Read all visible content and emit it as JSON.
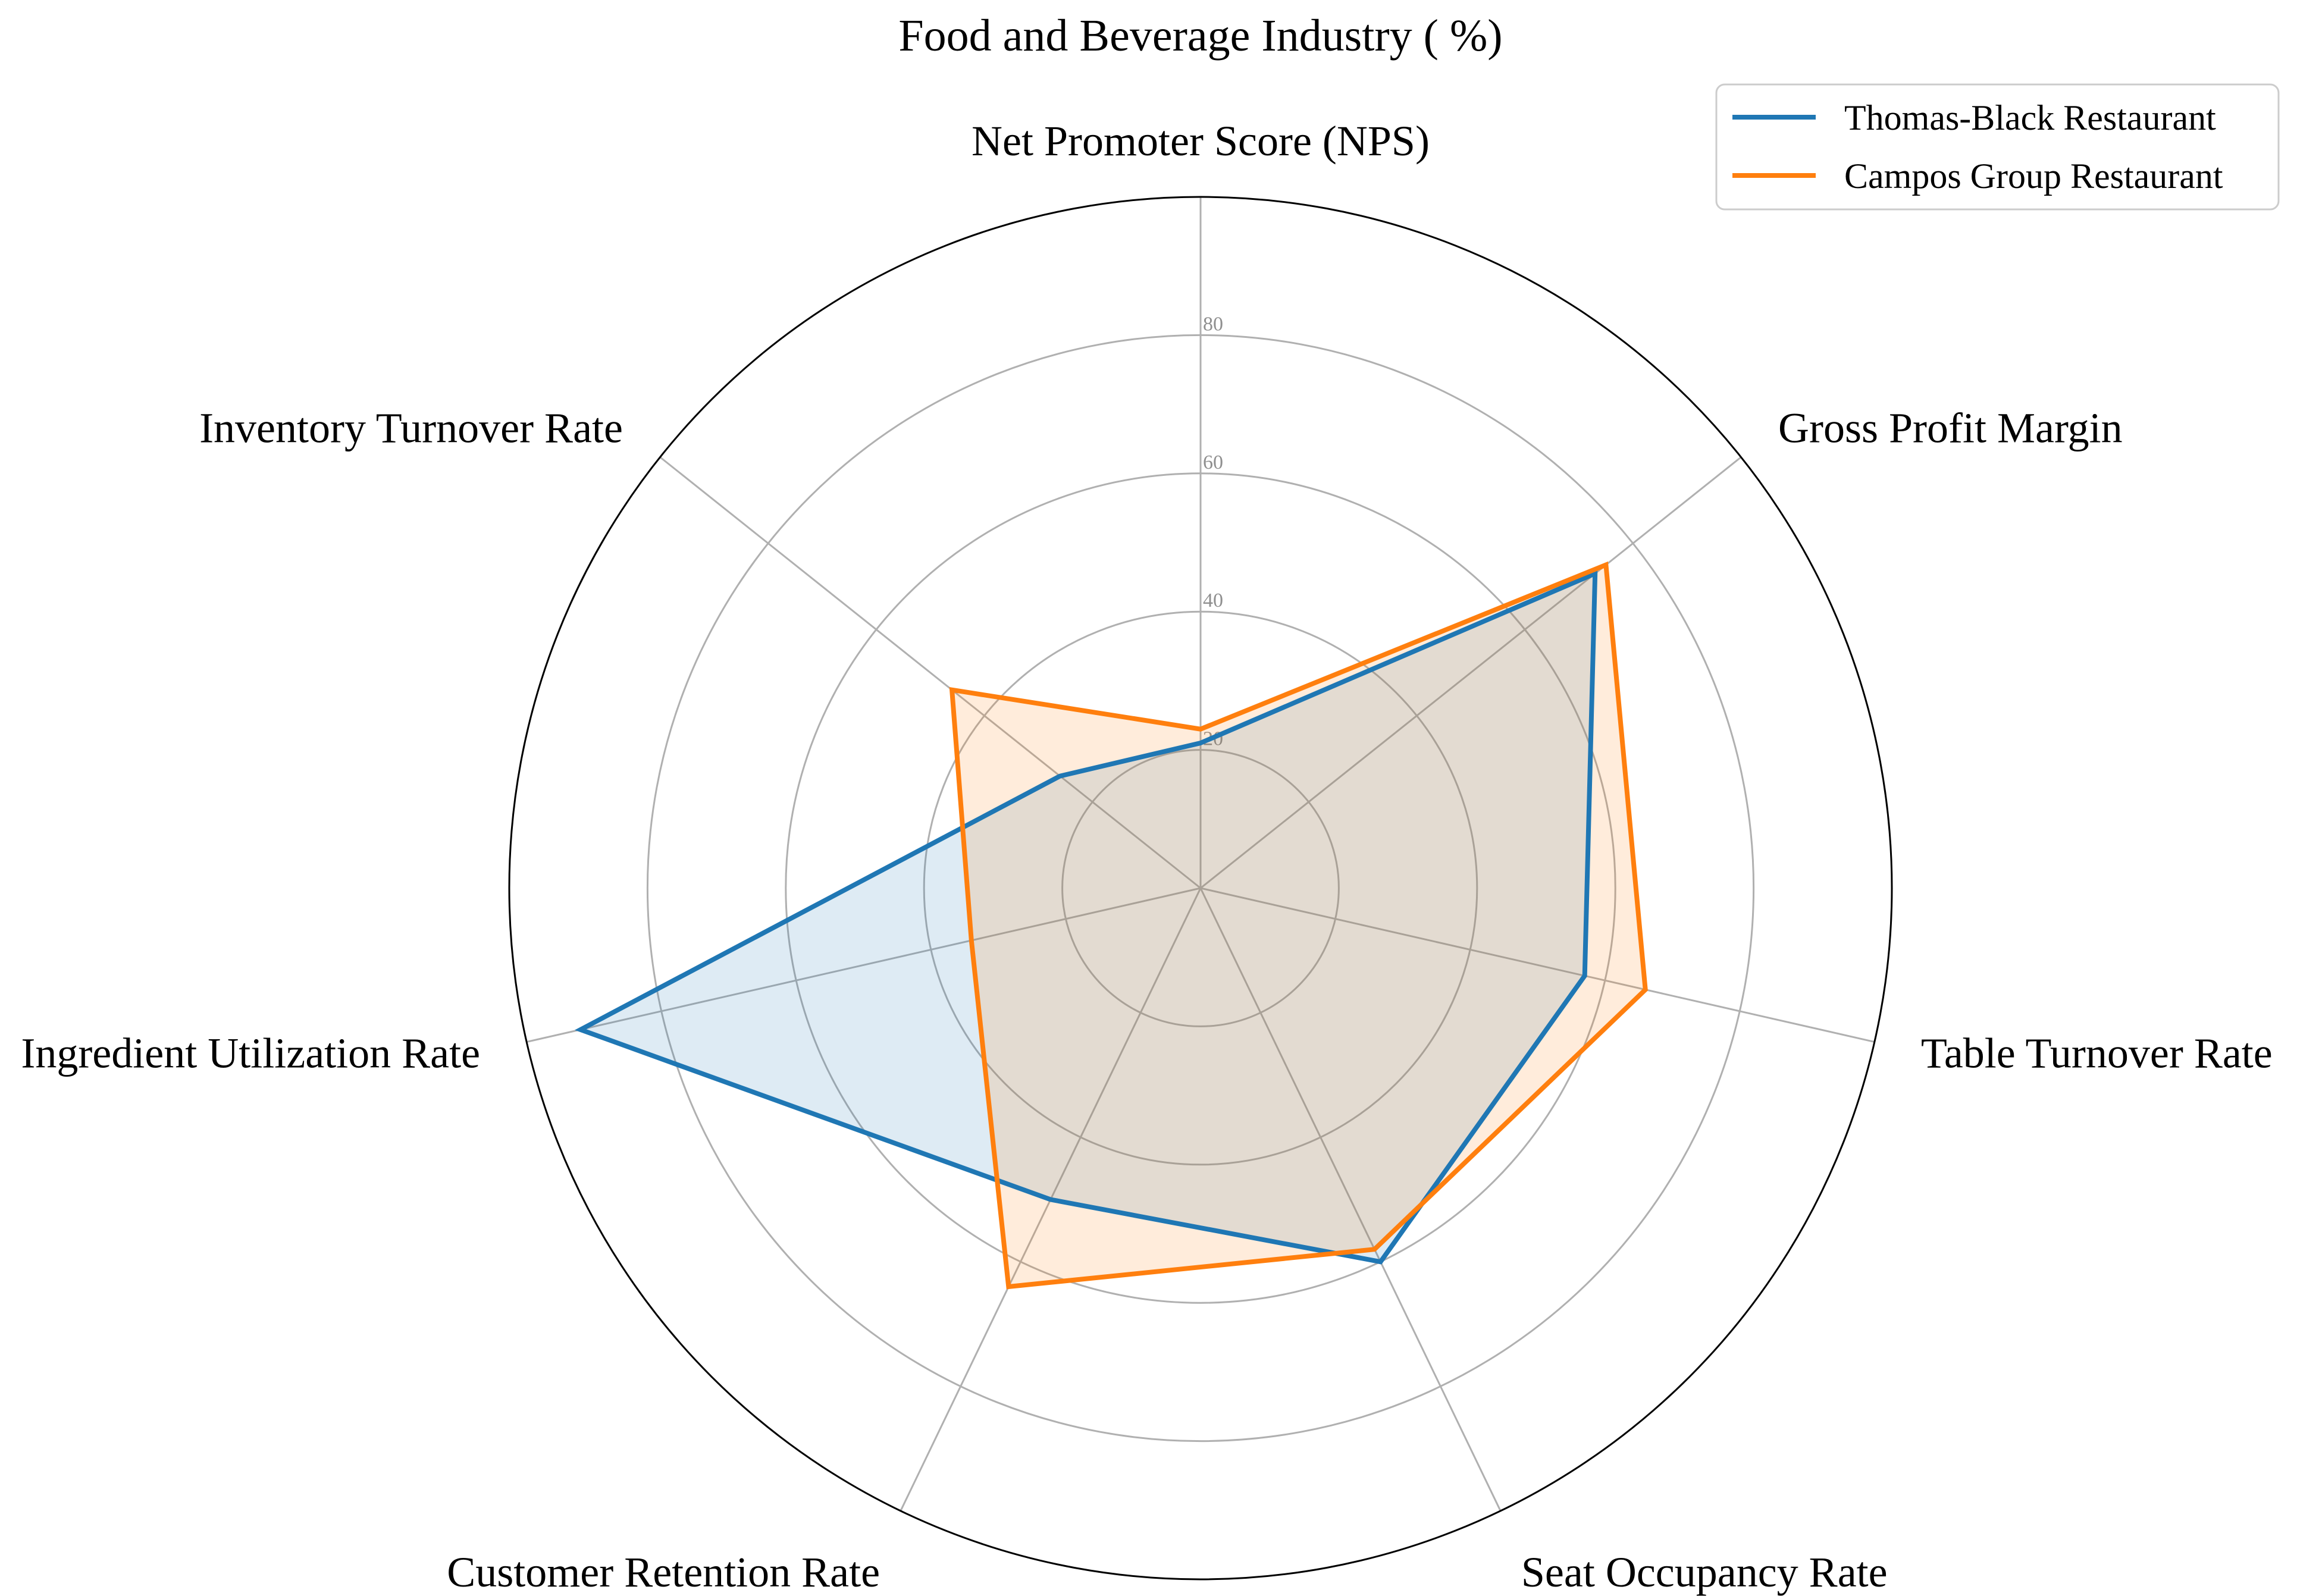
{
  "chart_data": {
    "type": "radar",
    "title": "Food and Beverage Industry ( %)",
    "categories": [
      "Net Promoter Score (NPS)",
      "Gross Profit Margin",
      "Table Turnover Rate",
      "Seat Occupancy Rate",
      "Customer Retention Rate",
      "Ingredient Utilization Rate",
      "Inventory Turnover Rate"
    ],
    "radial_ticks": [
      "20",
      "40",
      "60",
      "80"
    ],
    "tick_values": [
      20,
      40,
      60,
      80
    ],
    "rmax": 100,
    "grid": true,
    "legend_position": "top-right",
    "series": [
      {
        "name": "Thomas-Black Restaurant",
        "color": "#1f77b4",
        "values": [
          21,
          73,
          57,
          60,
          50,
          92,
          26
        ]
      },
      {
        "name": "Campos Group Restaurant",
        "color": "#ff7f0e",
        "values": [
          23,
          75,
          66,
          58,
          64,
          34,
          46
        ]
      }
    ]
  }
}
